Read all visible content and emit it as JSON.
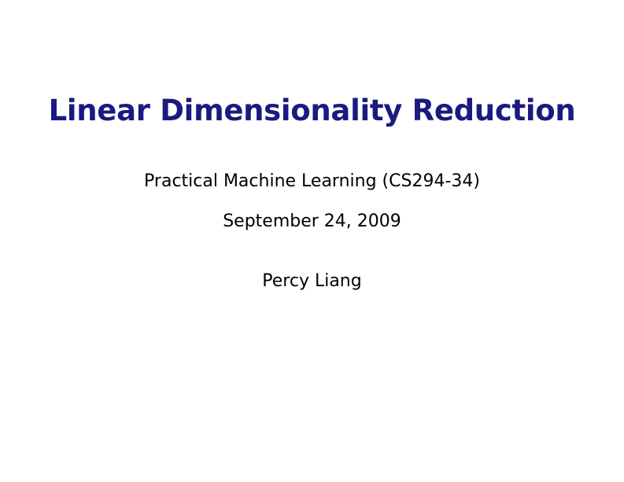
{
  "slide": {
    "title": "Linear Dimensionality Reduction",
    "subtitle": "Practical Machine Learning (CS294-34)",
    "date": "September 24, 2009",
    "author": "Percy Liang"
  }
}
